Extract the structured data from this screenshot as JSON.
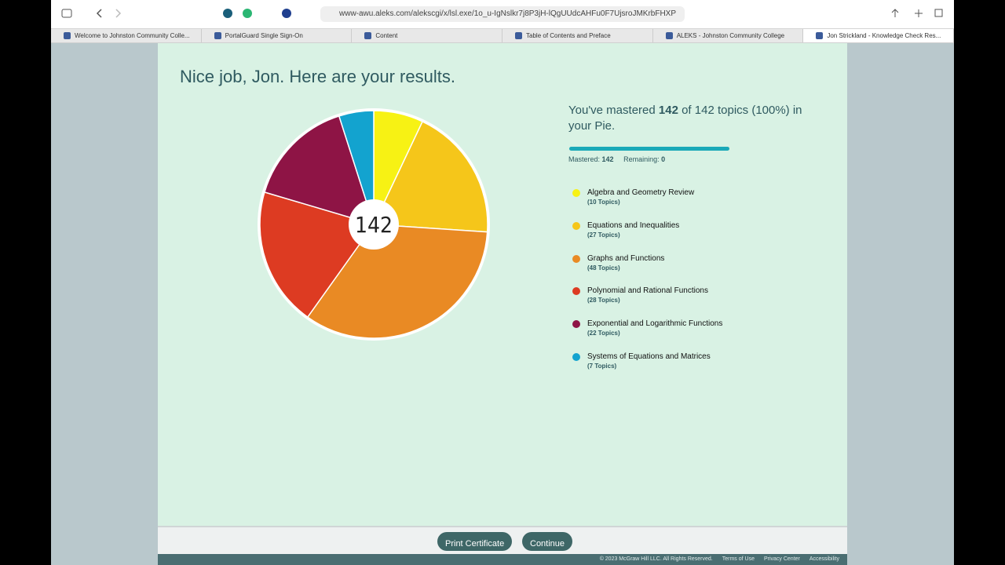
{
  "browser": {
    "url": "www-awu.aleks.com/alekscgi/x/lsl.exe/1o_u-IgNslkr7j8P3jH-lQgUUdcAHFu0F7UjsroJMKrbFHXP",
    "tabs": [
      "Welcome to Johnston Community Colle...",
      "PortalGuard Single Sign-On",
      "Content",
      "Table of Contents and Preface",
      "ALEKS - Johnston Community College",
      "Jon Strickland - Knowledge Check Res..."
    ]
  },
  "page": {
    "title": "Nice job, Jon. Here are your results.",
    "summary": {
      "lead": "You've mastered",
      "mastered": 142,
      "tail": "of 142 topics (100%) in your Pie."
    },
    "progress": {
      "mastered_label": "Mastered:",
      "mastered": 142,
      "remaining_label": "Remaining:",
      "remaining": 0
    },
    "pie": {
      "center_label": 142
    },
    "legend": {
      "items": [
        {
          "name": "Algebra and Geometry Review",
          "topics": 10,
          "topics_label": "(10 Topics)",
          "color": "#f7f214"
        },
        {
          "name": "Equations and Inequalities",
          "topics": 27,
          "topics_label": "(27 Topics)",
          "color": "#f5c61a"
        },
        {
          "name": "Graphs and Functions",
          "topics": 48,
          "topics_label": "(48 Topics)",
          "color": "#e98a24"
        },
        {
          "name": "Polynomial and Rational Functions",
          "topics": 28,
          "topics_label": "(28 Topics)",
          "color": "#dd3b22"
        },
        {
          "name": "Exponential and Logarithmic Functions",
          "topics": 22,
          "topics_label": "(22 Topics)",
          "color": "#8e1445"
        },
        {
          "name": "Systems of Equations and Matrices",
          "topics": 7,
          "topics_label": "(7 Topics)",
          "color": "#13a3cf"
        }
      ]
    },
    "buttons": [
      "Print Certificate",
      "Continue"
    ],
    "footer": {
      "copyright": "© 2023 McGraw Hill LLC. All Rights Reserved.",
      "links": [
        "Terms of Use",
        "Privacy Center",
        "Accessibility"
      ]
    }
  }
}
